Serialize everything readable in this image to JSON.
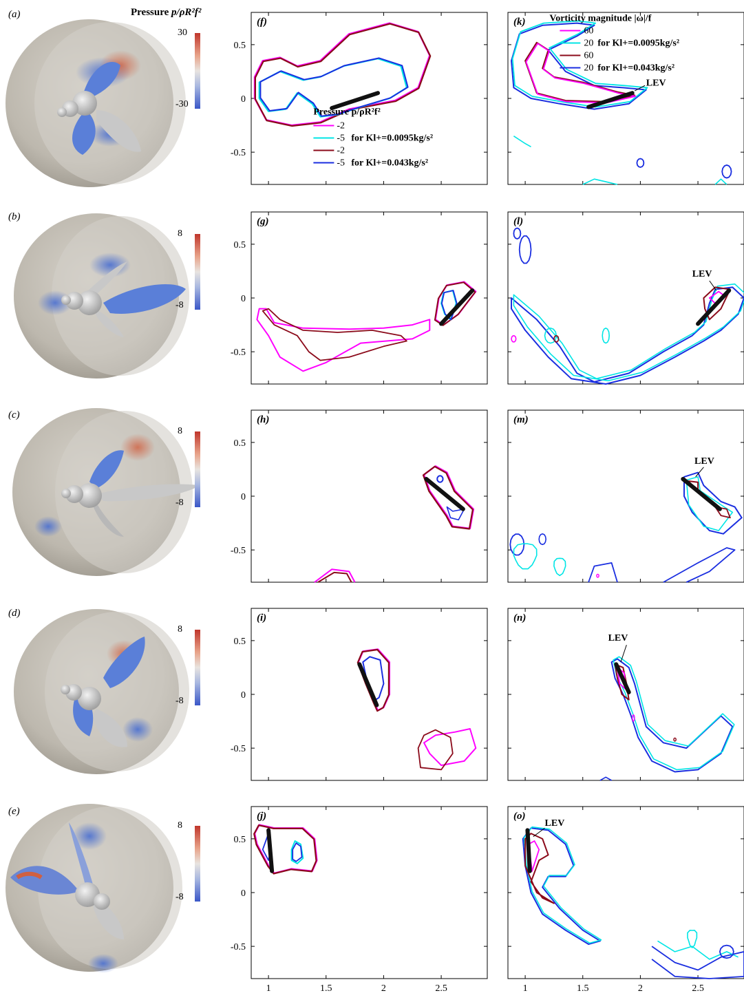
{
  "figure": {
    "colorbar_title_prefix": "Pressure ",
    "colorbar_title_math": "p/ρR²f²",
    "rows": [
      {
        "sphere_label": "(a)",
        "cb_max": "30",
        "cb_min": "-30",
        "pressure_label": "(f)",
        "vorticity_label": "(k)"
      },
      {
        "sphere_label": "(b)",
        "cb_max": "8",
        "cb_min": "-8",
        "pressure_label": "(g)",
        "vorticity_label": "(l)"
      },
      {
        "sphere_label": "(c)",
        "cb_max": "8",
        "cb_min": "-8",
        "pressure_label": "(h)",
        "vorticity_label": "(m)"
      },
      {
        "sphere_label": "(d)",
        "cb_max": "8",
        "cb_min": "-8",
        "pressure_label": "(i)",
        "vorticity_label": "(n)"
      },
      {
        "sphere_label": "(e)",
        "cb_max": "8",
        "cb_min": "-8",
        "pressure_label": "(j)",
        "vorticity_label": "(o)"
      }
    ],
    "pressure_legend": {
      "title": "Pressure p/ρR²f²",
      "entries": [
        {
          "value": "-2",
          "color": "#ff00ff"
        },
        {
          "value": "-5",
          "color": "#00e5e5"
        },
        {
          "value": "-2",
          "color": "#8b0a1a"
        },
        {
          "value": "-5",
          "color": "#1a2ee0"
        }
      ],
      "group1": "for Kl+=0.0095kg/s²",
      "group2": "for Kl+=0.043kg/s²"
    },
    "vorticity_legend": {
      "title": "Vorticity magnitude |ω|/f",
      "entries": [
        {
          "value": "60",
          "color": "#ff00ff"
        },
        {
          "value": "20",
          "color": "#00e5e5"
        },
        {
          "value": "60",
          "color": "#8b0a1a"
        },
        {
          "value": "20",
          "color": "#1a2ee0"
        }
      ],
      "group1": "for Kl+=0.0095kg/s²",
      "group2": "for Kl+=0.043kg/s²"
    },
    "lev_label": "LEV",
    "y_ticks": [
      "0.5",
      "0",
      "-0.5"
    ],
    "x_ticks": [
      "1",
      "1.5",
      "2",
      "2.5"
    ],
    "colors": {
      "magenta": "#ff00ff",
      "cyan": "#00e5e5",
      "darkred": "#8b0a1a",
      "blue": "#1a2ee0"
    }
  },
  "chart_data": [
    {
      "type": "line",
      "panel": "(f)",
      "xlim": [
        0.85,
        2.9
      ],
      "ylim": [
        -0.8,
        0.8
      ],
      "yticks": [
        0.5,
        0,
        -0.5
      ],
      "contours": "pressure"
    },
    {
      "type": "line",
      "panel": "(g)",
      "xlim": [
        0.85,
        2.9
      ],
      "ylim": [
        -0.8,
        0.8
      ],
      "yticks": [
        0.5,
        0,
        -0.5
      ],
      "contours": "pressure"
    },
    {
      "type": "line",
      "panel": "(h)",
      "xlim": [
        0.85,
        2.9
      ],
      "ylim": [
        -0.8,
        0.8
      ],
      "yticks": [
        0.5,
        0,
        -0.5
      ],
      "contours": "pressure"
    },
    {
      "type": "line",
      "panel": "(i)",
      "xlim": [
        0.85,
        2.9
      ],
      "ylim": [
        -0.8,
        0.8
      ],
      "yticks": [
        0.5,
        0,
        -0.5
      ],
      "contours": "pressure"
    },
    {
      "type": "line",
      "panel": "(j)",
      "xlim": [
        0.85,
        2.9
      ],
      "ylim": [
        -0.8,
        0.8
      ],
      "yticks": [
        0.5,
        0,
        -0.5
      ],
      "xticks": [
        1,
        1.5,
        2,
        2.5
      ],
      "contours": "pressure"
    },
    {
      "type": "line",
      "panel": "(k)",
      "xlim": [
        0.85,
        2.9
      ],
      "ylim": [
        -0.8,
        0.8
      ],
      "contours": "vorticity"
    },
    {
      "type": "line",
      "panel": "(l)",
      "xlim": [
        0.85,
        2.9
      ],
      "ylim": [
        -0.8,
        0.8
      ],
      "contours": "vorticity"
    },
    {
      "type": "line",
      "panel": "(m)",
      "xlim": [
        0.85,
        2.9
      ],
      "ylim": [
        -0.8,
        0.8
      ],
      "contours": "vorticity"
    },
    {
      "type": "line",
      "panel": "(n)",
      "xlim": [
        0.85,
        2.9
      ],
      "ylim": [
        -0.8,
        0.8
      ],
      "contours": "vorticity"
    },
    {
      "type": "line",
      "panel": "(o)",
      "xlim": [
        0.85,
        2.9
      ],
      "ylim": [
        -0.8,
        0.8
      ],
      "xticks": [
        1,
        1.5,
        2,
        2.5
      ],
      "contours": "vorticity"
    }
  ]
}
